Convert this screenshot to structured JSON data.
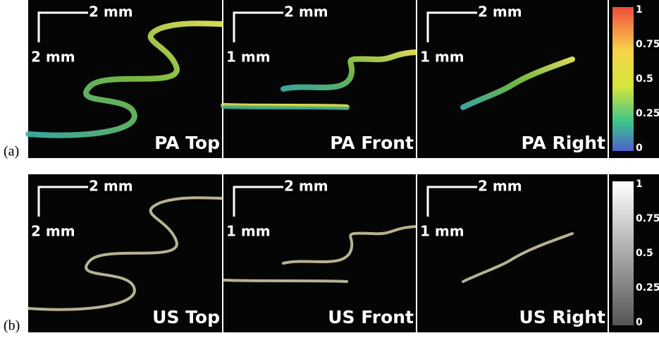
{
  "rows": [
    {
      "label": "(a)",
      "panels": [
        {
          "title": "PA Top",
          "scale_x": "2 mm",
          "scale_y": "2 mm"
        },
        {
          "title": "PA Front",
          "scale_x": "2 mm",
          "scale_y": "1 mm"
        },
        {
          "title": "PA Right",
          "scale_x": "2 mm",
          "scale_y": "1 mm"
        }
      ],
      "colorbar": {
        "ticks": [
          "1",
          "0.75",
          "0.5",
          "0.25",
          "0"
        ]
      }
    },
    {
      "label": "(b)",
      "panels": [
        {
          "title": "US Top",
          "scale_x": "2 mm",
          "scale_y": "2 mm"
        },
        {
          "title": "US Front",
          "scale_x": "2 mm",
          "scale_y": "1 mm"
        },
        {
          "title": "US Right",
          "scale_x": "2 mm",
          "scale_y": "1 mm"
        }
      ],
      "colorbar": {
        "ticks": [
          "1",
          "0.75",
          "0.5",
          "0.25",
          "0"
        ]
      }
    }
  ]
}
